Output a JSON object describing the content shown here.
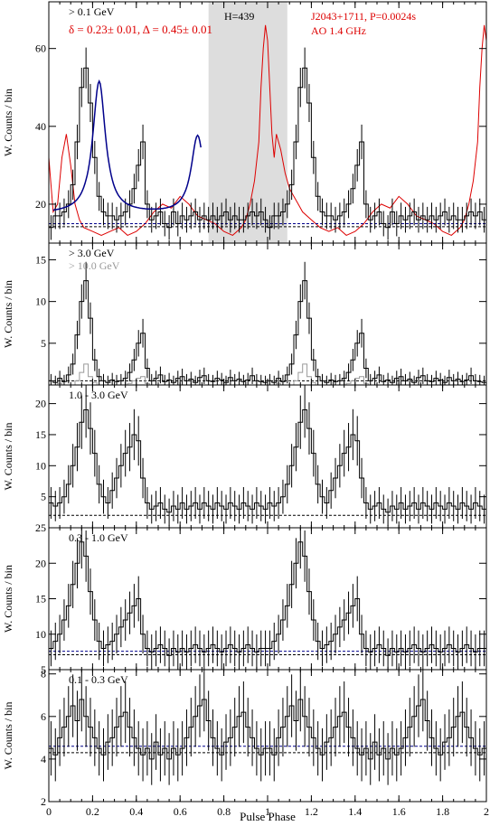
{
  "figure": {
    "xlabel": "Pulse Phase",
    "xlim": [
      0,
      2
    ],
    "xticks": [
      0,
      0.2,
      0.4,
      0.6,
      0.8,
      1,
      1.2,
      1.4,
      1.6,
      1.8,
      2
    ],
    "xtick_labels": [
      "0",
      "0.2",
      "0.4",
      "0.6",
      "0.8",
      "1",
      "1.2",
      "1.4",
      "1.6",
      "1.8",
      "2"
    ],
    "colors": {
      "axes": "#000000",
      "radio": "#dd0000",
      "fit": "#00008b",
      "highband": "#999999",
      "offpulse": "#dddddd"
    }
  },
  "chart_data": [
    {
      "type": "line",
      "ylabel": "W. Counts / bin",
      "ylim": [
        10,
        72
      ],
      "yticks": [
        20,
        40,
        60
      ],
      "band_label": "> 0.1 GeV",
      "fit_label": "δ = 0.23± 0.01, Δ = 0.45± 0.01",
      "htest_label": "H=439",
      "radio_label_1": "J2043+1711, P=0.0024s",
      "radio_label_2": "AO 1.4 GHz",
      "offpulse_region": [
        0.73,
        1.09
      ],
      "nbins": 50,
      "profile": [
        14,
        17,
        17,
        18,
        20,
        25,
        36,
        50,
        55,
        46,
        32,
        22,
        18,
        17,
        17,
        16,
        17,
        18,
        20,
        24,
        30,
        36,
        20,
        16,
        17,
        18,
        15,
        14,
        18,
        15,
        17,
        16,
        17,
        18,
        16,
        17,
        16,
        17,
        16,
        17,
        18,
        16,
        17,
        16,
        16,
        17,
        18,
        17,
        18,
        16
      ],
      "error_bars": 3.5,
      "background_levels": [
        14.2,
        15.0
      ],
      "fit_curve": {
        "baseline": 17.5,
        "peaks": [
          {
            "center": 0.23,
            "amplitude": 34,
            "width": 0.035
          },
          {
            "center": 0.68,
            "amplitude": 20,
            "width": 0.035
          }
        ]
      },
      "radio_profile": {
        "phase": [
          0,
          0.02,
          0.04,
          0.06,
          0.08,
          0.1,
          0.12,
          0.14,
          0.16,
          0.2,
          0.24,
          0.28,
          0.32,
          0.36,
          0.4,
          0.44,
          0.48,
          0.52,
          0.56,
          0.6,
          0.64,
          0.68,
          0.72,
          0.76,
          0.8,
          0.84,
          0.88,
          0.9,
          0.92,
          0.94,
          0.96,
          0.97,
          0.98,
          0.99,
          1.0,
          1.01,
          1.02,
          1.03,
          1.04,
          1.06,
          1.08,
          1.1,
          1.12,
          1.14,
          1.16,
          1.2,
          1.24,
          1.28,
          1.32,
          1.36,
          1.4,
          1.44,
          1.48,
          1.52,
          1.56,
          1.6,
          1.64,
          1.68,
          1.72,
          1.76,
          1.8,
          1.84,
          1.88,
          1.9,
          1.92,
          1.94,
          1.96,
          1.97,
          1.98,
          1.99,
          2.0
        ],
        "value": [
          32,
          18,
          20,
          32,
          38,
          30,
          20,
          16,
          14,
          13,
          12,
          13,
          14,
          12,
          13,
          15,
          18,
          20,
          19,
          22,
          20,
          17,
          16,
          15,
          13,
          12,
          14,
          16,
          20,
          26,
          36,
          50,
          60,
          66,
          62,
          50,
          38,
          32,
          38,
          34,
          28,
          24,
          22,
          20,
          18,
          16,
          14,
          13,
          14,
          12,
          13,
          15,
          18,
          20,
          19,
          22,
          20,
          17,
          16,
          15,
          13,
          12,
          14,
          16,
          20,
          26,
          36,
          50,
          60,
          66,
          62
        ]
      }
    },
    {
      "type": "line",
      "ylabel": "W. Counts / bin",
      "ylim": [
        0,
        17
      ],
      "yticks": [
        5,
        10,
        15
      ],
      "band_label": "> 3.0 GeV",
      "band_label_2": "> 10.0 GeV",
      "nbins": 50,
      "profile": [
        0.5,
        0.3,
        0.8,
        0.4,
        1.2,
        2.5,
        6,
        10,
        12.5,
        8,
        3,
        1,
        0.5,
        0.3,
        0.6,
        0.4,
        0.5,
        0.8,
        1.5,
        3,
        5,
        6.2,
        2,
        0.5,
        0.8,
        1.2,
        0.4,
        0.6,
        0.3,
        0.8,
        1,
        0.5,
        0.7,
        0.3,
        0.9,
        1.1,
        0.5,
        0.4,
        0.8,
        0.6,
        0.3,
        0.9,
        0.5,
        0.7,
        0.4,
        0.6,
        1.1,
        0.5,
        0.4,
        0.3
      ],
      "error_bars": 1.5,
      "highband_profile": [
        0,
        0,
        0.2,
        0,
        0,
        0,
        0.5,
        1.5,
        2.5,
        1,
        0.3,
        0,
        0,
        0,
        0,
        0,
        0,
        0,
        0.2,
        0.5,
        0.8,
        1,
        0.2,
        0,
        0,
        0,
        0,
        0,
        0,
        0,
        0,
        0,
        0,
        0,
        0,
        0,
        0,
        0,
        0,
        0,
        0,
        0,
        0,
        0,
        0,
        0,
        0,
        0,
        0,
        0
      ],
      "background_levels": [
        0.5
      ]
    },
    {
      "type": "line",
      "ylabel": "W. Counts / bin",
      "ylim": [
        0,
        23
      ],
      "yticks": [
        5,
        10,
        15,
        20
      ],
      "band_label": "1.0 - 3.0 GeV",
      "nbins": 50,
      "profile": [
        4,
        3.5,
        4,
        5,
        7,
        10,
        13,
        17,
        19,
        16,
        12,
        7,
        5,
        4,
        6,
        8,
        10,
        12,
        13,
        15,
        14,
        8,
        4,
        3,
        3.5,
        4,
        3,
        2.5,
        3.5,
        3,
        4,
        3,
        3.5,
        4,
        3,
        4,
        3.5,
        3,
        4,
        3.5,
        3,
        4,
        3.5,
        3,
        4,
        3.5,
        3,
        4,
        3.5,
        3
      ],
      "error_bars": 3.0,
      "background_levels": [
        2.0
      ]
    },
    {
      "type": "line",
      "ylabel": "W. Counts / bin",
      "ylim": [
        5,
        25
      ],
      "yticks": [
        5,
        10,
        15,
        20,
        25
      ],
      "band_label": "0.3 - 1.0 GeV",
      "nbins": 50,
      "profile": [
        8,
        9,
        10,
        12,
        14,
        17,
        20,
        23,
        21,
        16,
        12,
        9,
        8,
        8.5,
        9,
        10,
        11,
        12,
        13,
        14,
        15,
        10,
        8,
        7.5,
        8,
        8.5,
        8,
        7,
        8,
        7.5,
        8,
        7.5,
        8,
        8.5,
        8,
        7.5,
        8,
        8.5,
        8,
        7.5,
        8,
        8.5,
        8,
        7.5,
        8,
        8.5,
        8,
        7.5,
        8,
        8
      ],
      "error_bars": 2.5,
      "background_levels": [
        7.1,
        7.6
      ]
    },
    {
      "type": "line",
      "ylabel": "W. Counts / bin",
      "ylim": [
        2,
        8.2
      ],
      "yticks": [
        2,
        4,
        6,
        8
      ],
      "band_label": "0.1 - 0.3 GeV",
      "nbins": 50,
      "profile": [
        4.5,
        4.2,
        5,
        5.5,
        6,
        6.5,
        5.8,
        6.8,
        6,
        5.5,
        5,
        4.5,
        4.2,
        4.8,
        5,
        5.5,
        6,
        6.2,
        5.5,
        5,
        4.5,
        4.2,
        4.5,
        4,
        4.8,
        4.2,
        4.5,
        4,
        4.5,
        4.2,
        4.5,
        5,
        5.5,
        6,
        6.5,
        6.8,
        5.8,
        5,
        4.5,
        4.2,
        4.8,
        5,
        5.5,
        6,
        6.2,
        5.5,
        5,
        4.5,
        4.2,
        4.5
      ],
      "error_bars": 1.0,
      "background_levels": [
        4.3,
        4.6
      ]
    }
  ]
}
